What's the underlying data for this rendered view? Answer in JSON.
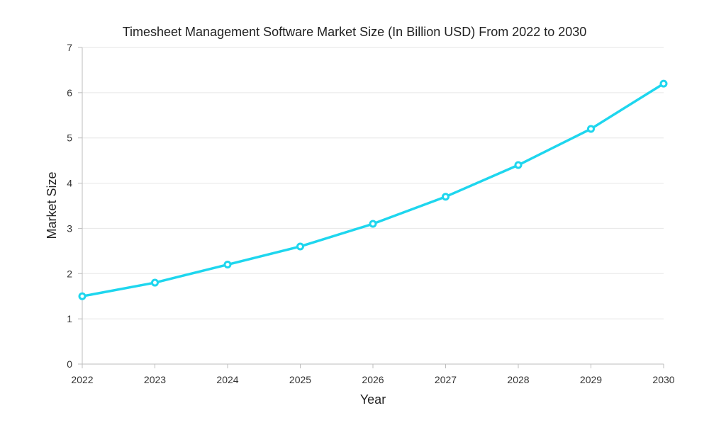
{
  "chart_data": {
    "type": "line",
    "title": "Timesheet Management Software Market Size (In Billion USD) From 2022 to 2030",
    "xlabel": "Year",
    "ylabel": "Market Size",
    "categories": [
      "2022",
      "2023",
      "2024",
      "2025",
      "2026",
      "2027",
      "2028",
      "2029",
      "2030"
    ],
    "series": [
      {
        "name": "Market Size",
        "values": [
          1.5,
          1.8,
          2.2,
          2.6,
          3.1,
          3.7,
          4.4,
          5.2,
          6.2
        ],
        "color": "#1ed6ee"
      }
    ],
    "ylim": [
      0,
      7
    ],
    "yticks": [
      "0",
      "1",
      "2",
      "3",
      "4",
      "5",
      "6",
      "7"
    ],
    "grid": true,
    "legend": "none"
  },
  "colors": {
    "line": "#1ed6ee",
    "grid": "#e6e6e6",
    "axis": "#bdbdbd"
  }
}
